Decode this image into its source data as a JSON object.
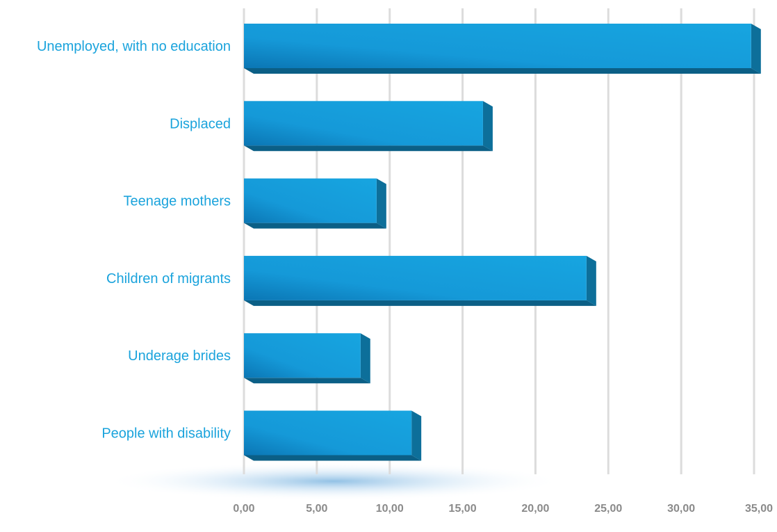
{
  "chart_data": {
    "type": "bar",
    "orientation": "horizontal",
    "categories": [
      "Unemployed, with no education",
      "Displaced",
      "Teenage mothers",
      "Children of migrants",
      "Underage brides",
      "People with disability"
    ],
    "values": [
      34.8,
      16.4,
      9.1,
      23.5,
      8.0,
      11.5
    ],
    "x_tick_labels": [
      "0,00",
      "5,00",
      "10,00",
      "15,00",
      "20,00",
      "25,00",
      "30,00",
      "35,00"
    ],
    "xlim": [
      0,
      35
    ],
    "grid": true,
    "colors": {
      "bar_front": "#159fdc",
      "bar_side": "#0d6f9a",
      "bar_bottom": "#0b5f86",
      "label_text": "#1aa3dc",
      "tick_text": "#8a8a8a",
      "grid": "#dcdcdc"
    }
  }
}
